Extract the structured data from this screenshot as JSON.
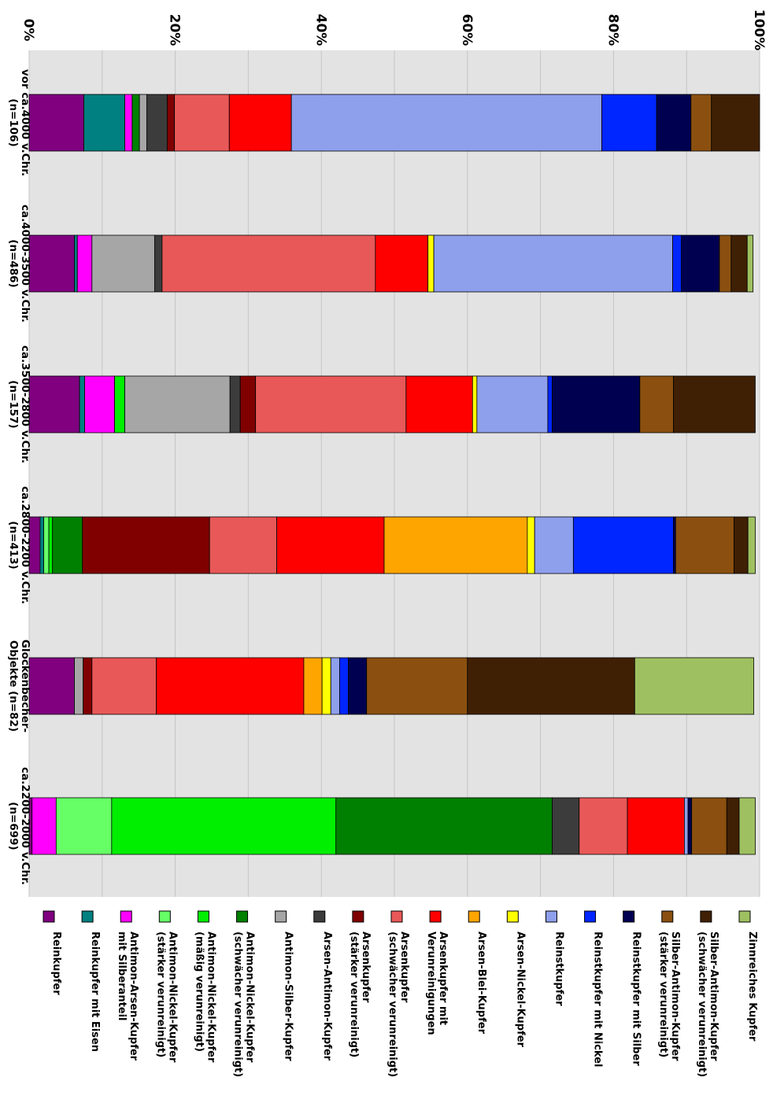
{
  "chart_data": {
    "type": "bar",
    "stacked": true,
    "orientation": "rotated-90-clockwise",
    "value_axis": {
      "ylim": [
        0,
        100
      ],
      "ticks": [
        "0%",
        "20%",
        "40%",
        "60%",
        "80%",
        "100%"
      ]
    },
    "grid": true,
    "legend_position": "bottom",
    "categories": [
      [
        "vor ca.4000 v.Chr.",
        "(n=106)"
      ],
      [
        "ca.4000-3500 v.Chr.",
        "(n=486)"
      ],
      [
        "ca.3500-2800 v.Chr.",
        "(n=157)"
      ],
      [
        "ca.2800-2200 v.Chr.",
        "(n=413)"
      ],
      [
        "Glockenbecher-",
        "Objekte (n=82)"
      ],
      [
        "ca.2200-2000 v.Chr.",
        "(n=699)"
      ]
    ],
    "series": [
      {
        "name": [
          "Reinkupfer"
        ],
        "color": "#800080",
        "values": [
          7.5,
          6.2,
          6.9,
          1.5,
          6.2,
          0.4
        ]
      },
      {
        "name": [
          "Reinkupfer mit Eisen"
        ],
        "color": "#008080",
        "values": [
          5.6,
          0.4,
          0.7,
          0.5,
          0,
          0
        ]
      },
      {
        "name": [
          "Antimon-Arsen-Kupfer",
          "mit Silberanteil"
        ],
        "color": "#ff00ff",
        "values": [
          1.0,
          2.0,
          4.1,
          0,
          0,
          3.3
        ]
      },
      {
        "name": [
          "Antimon-Nickel-Kupfer",
          "(stärker verunreinigt)"
        ],
        "color": "#66ff66",
        "values": [
          0,
          0,
          0,
          0.7,
          0,
          7.6
        ]
      },
      {
        "name": [
          "Antimon-Nickel-Kupfer",
          "(mäßig verunreinigt)"
        ],
        "color": "#00ee00",
        "values": [
          0,
          0,
          1.4,
          0.5,
          0,
          30.7
        ]
      },
      {
        "name": [
          "Antimon-Nickel-Kupfer",
          "(schwächer verunreinigt)"
        ],
        "color": "#008000",
        "values": [
          1.0,
          0,
          0,
          4.1,
          0,
          29.6
        ]
      },
      {
        "name": [
          "Antimon-Silber-Kupfer"
        ],
        "color": "#a6a6a6",
        "values": [
          1.0,
          8.6,
          14.4,
          0,
          1.2,
          0
        ]
      },
      {
        "name": [
          "Arsen-Antimon-Kupfer"
        ],
        "color": "#3c3c3c",
        "values": [
          2.8,
          1.0,
          1.4,
          0,
          0,
          3.7
        ]
      },
      {
        "name": [
          "Arsenkupfer",
          "(stärker verunreinigt)"
        ],
        "color": "#800000",
        "values": [
          1.0,
          0,
          2.1,
          17.4,
          1.2,
          0
        ]
      },
      {
        "name": [
          "Arsenkupfer",
          "(schwächer verunreinigt)"
        ],
        "color": "#e85858",
        "values": [
          7.5,
          29.2,
          20.6,
          9.2,
          8.8,
          6.6
        ]
      },
      {
        "name": [
          "Arsenkupfer mit",
          "Verunreinigungen"
        ],
        "color": "#ff0000",
        "values": [
          8.5,
          7.2,
          9.1,
          14.7,
          20.2,
          7.8
        ]
      },
      {
        "name": [
          "Arsen-Blei-Kupfer"
        ],
        "color": "#ffa500",
        "values": [
          0,
          0,
          0,
          19.6,
          2.5,
          0
        ]
      },
      {
        "name": [
          "Arsen-Nickel-Kupfer"
        ],
        "color": "#ffff00",
        "values": [
          0,
          0.8,
          0.6,
          1.0,
          1.2,
          0
        ]
      },
      {
        "name": [
          "Reinstkupfer"
        ],
        "color": "#8e9fec",
        "values": [
          42.5,
          32.7,
          9.7,
          5.3,
          1.2,
          0.5
        ]
      },
      {
        "name": [
          "Reinstkupfer mit Nickel"
        ],
        "color": "#0026ff",
        "values": [
          7.5,
          1.2,
          0.6,
          13.7,
          1.2,
          0
        ]
      },
      {
        "name": [
          "Reinstkupfer mit Silber"
        ],
        "color": "#000050",
        "values": [
          4.7,
          5.2,
          12.0,
          0.3,
          2.5,
          0.5
        ]
      },
      {
        "name": [
          "Silber-Antimon-Kupfer",
          "(stärker verunreinigt)"
        ],
        "color": "#8b5010",
        "values": [
          2.8,
          1.6,
          4.6,
          8.0,
          13.8,
          4.8
        ]
      },
      {
        "name": [
          "Silber-Antimon-Kupfer",
          "(schwächer verunreinigt)"
        ],
        "color": "#402004",
        "values": [
          6.6,
          2.2,
          11.2,
          1.9,
          22.9,
          1.7
        ]
      },
      {
        "name": [
          "Zinnreiches Kupfer"
        ],
        "color": "#9fc060",
        "values": [
          0,
          0.8,
          0,
          1.0,
          16.3,
          2.2
        ]
      }
    ]
  }
}
